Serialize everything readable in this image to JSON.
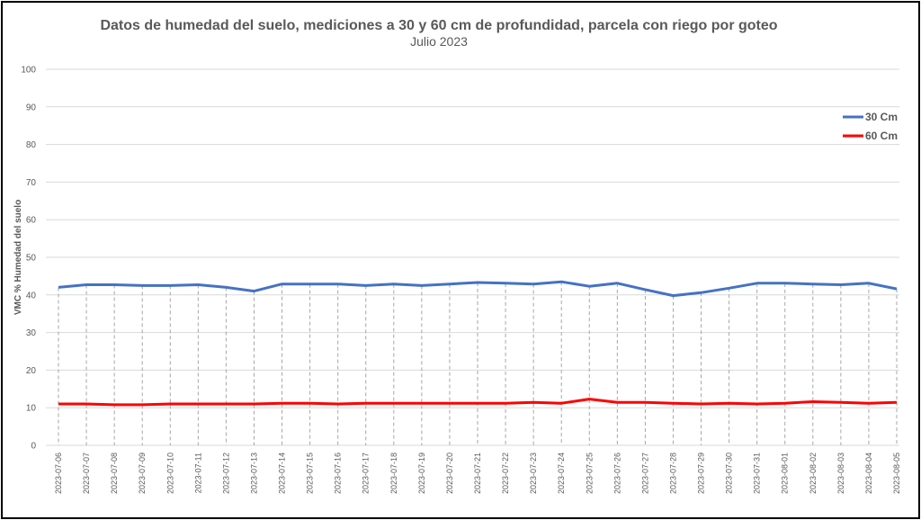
{
  "chart_data": {
    "type": "line",
    "title": "Datos de humedad del suelo, mediciones a 30 y 60 cm de profundidad, parcela con riego por goteo",
    "subtitle": "Julio 2023",
    "ylabel": "VMC %  Humedad del suelo",
    "xlabel": "",
    "ylim": [
      0,
      100
    ],
    "yticks": [
      0,
      10,
      20,
      30,
      40,
      50,
      60,
      70,
      80,
      90,
      100
    ],
    "grid": true,
    "legend_position": "top-right",
    "categories": [
      "2023-07-06",
      "2023-07-07",
      "2023-07-08",
      "2023-07-09",
      "2023-07-10",
      "2023-07-11",
      "2023-07-12",
      "2023-07-13",
      "2023-07-14",
      "2023-07-15",
      "2023-07-16",
      "2023-07-17",
      "2023-07-18",
      "2023-07-19",
      "2023-07-20",
      "2023-07-21",
      "2023-07-22",
      "2023-07-23",
      "2023-07-24",
      "2023-07-25",
      "2023-07-26",
      "2023-07-27",
      "2023-07-28",
      "2023-07-29",
      "2023-07-30",
      "2023-07-31",
      "2023-08-01",
      "2023-08-02",
      "2023-08-03",
      "2023-08-04",
      "2023-08-05"
    ],
    "series": [
      {
        "name": "30 Cm",
        "color": "#4472C4",
        "values": [
          42.0,
          42.7,
          42.7,
          42.5,
          42.5,
          42.7,
          42.0,
          41.0,
          42.9,
          42.9,
          42.9,
          42.5,
          42.9,
          42.5,
          42.9,
          43.3,
          43.1,
          42.9,
          43.5,
          42.3,
          43.1,
          41.4,
          39.8,
          40.6,
          41.8,
          43.1,
          43.1,
          42.9,
          42.7,
          43.1,
          41.6
        ]
      },
      {
        "name": "60 Cm",
        "color": "#FF0000",
        "values": [
          11.0,
          11.0,
          10.8,
          10.8,
          11.0,
          11.0,
          11.0,
          11.0,
          11.2,
          11.2,
          11.0,
          11.2,
          11.2,
          11.2,
          11.2,
          11.2,
          11.2,
          11.4,
          11.2,
          12.3,
          11.4,
          11.4,
          11.2,
          11.0,
          11.2,
          11.0,
          11.2,
          11.6,
          11.4,
          11.2,
          11.4
        ]
      }
    ]
  }
}
